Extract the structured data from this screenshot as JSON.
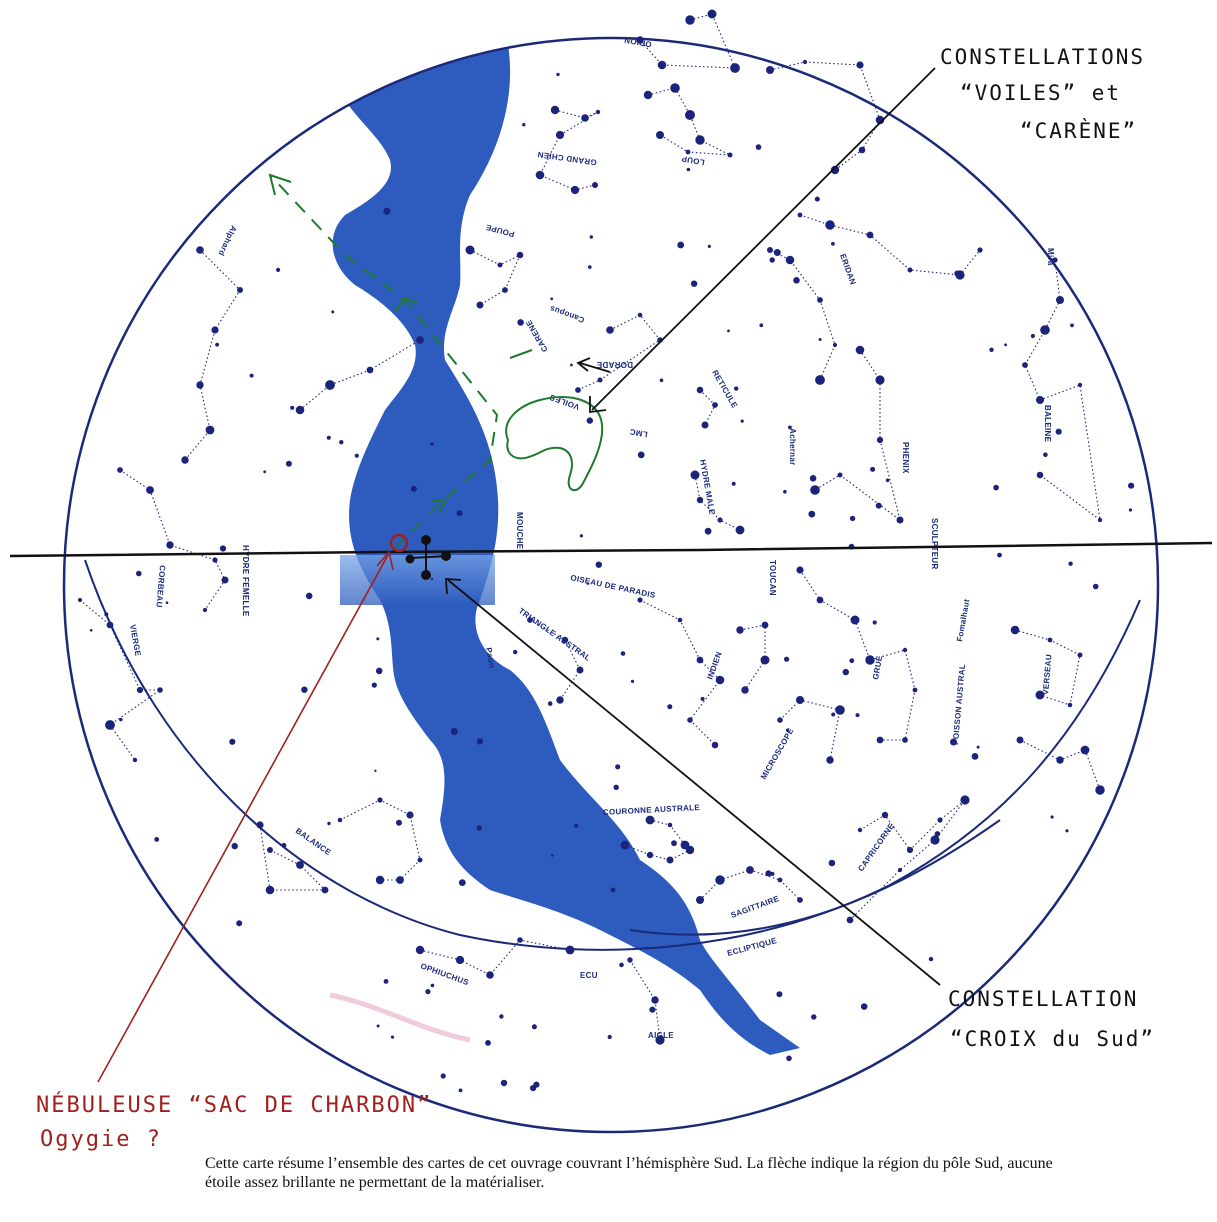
{
  "map": {
    "constellations": [
      "ORION",
      "GRAND CHIEN",
      "LOUP",
      "POUPE",
      "Canopus",
      "CARENE",
      "DORADE",
      "VOILES",
      "LMC",
      "RETICULE",
      "ERIDAN",
      "Achernar",
      "HYDRE MALE",
      "PHENIX",
      "BALEINE",
      "Mira",
      "Alphard",
      "CORBEAU",
      "HYDRE FEMELLE",
      "VIERGE",
      "MOUCHE",
      "TOUCAN",
      "SCULPTEUR",
      "OISEAU DE PARADIS",
      "TRIANGLE AUSTRAL",
      "INDIEN",
      "GRUE",
      "Fomalhaut",
      "POISSON AUSTRAL",
      "VERSEAU",
      "MICROSCOPE",
      "COURONNE AUSTRALE",
      "BALANCE",
      "CAPRICORNE",
      "SAGITTAIRE",
      "ECLIPTIQUE",
      "OPHIUCHUS",
      "ECU",
      "AIGLE",
      "Paon"
    ],
    "colors": {
      "milky_way": "#2e5cbe",
      "stars": "#1b237a",
      "rim": "#1b2a78",
      "annotation_black": "#111111",
      "annotation_red": "#a0201e",
      "annotation_green": "#1e7a2c"
    }
  },
  "annotations": {
    "top_right": [
      "CONSTELLATIONS",
      "“VOILES” et",
      "“CARÈNE”"
    ],
    "bottom_right": [
      "CONSTELLATION",
      "“CROIX du Sud”"
    ],
    "bottom_left": [
      "NÉBULEUSE “SAC DE CHARBON”",
      "Ogygie ?"
    ]
  },
  "caption": "Cette carte résume l’ensemble des cartes de cet ouvrage couvrant l’hémisphère Sud. La flèche indique la région du pôle Sud, aucune étoile assez brillante ne permettant de la matérialiser."
}
